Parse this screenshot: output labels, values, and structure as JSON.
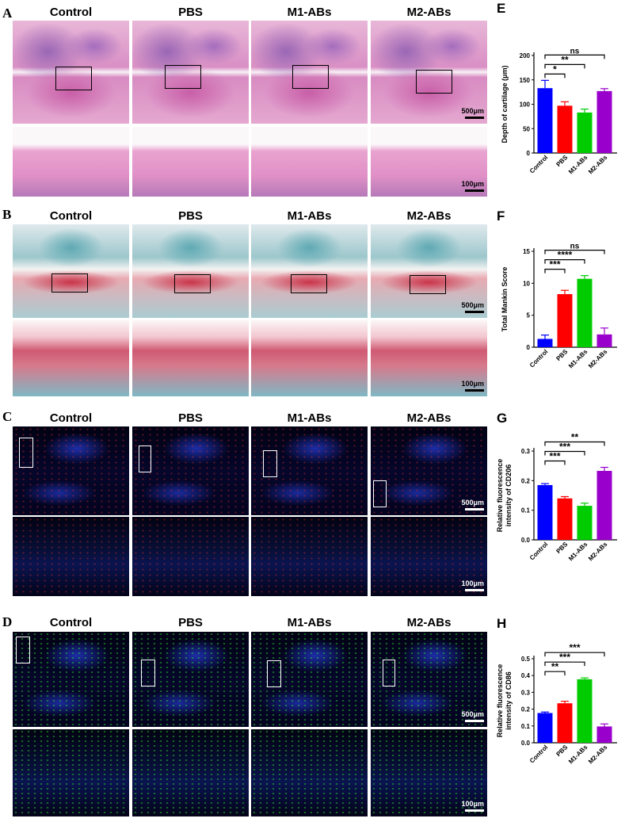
{
  "panels": {
    "A": {
      "letter": "A",
      "groups": [
        "Control",
        "PBS",
        "M1-ABs",
        "M2-ABs"
      ],
      "scale_top": "500μm",
      "scale_bottom": "100μm"
    },
    "B": {
      "letter": "B",
      "groups": [
        "Control",
        "PBS",
        "M1-ABs",
        "M2-ABs"
      ],
      "scale_top": "500μm",
      "scale_bottom": "100μm"
    },
    "C": {
      "letter": "C",
      "groups": [
        "Control",
        "PBS",
        "M1-ABs",
        "M2-ABs"
      ],
      "scale_top": "500μm",
      "scale_bottom": "100μm"
    },
    "D": {
      "letter": "D",
      "groups": [
        "Control",
        "PBS",
        "M1-ABs",
        "M2-ABs"
      ],
      "scale_top": "500μm",
      "scale_bottom": "100μm"
    }
  },
  "colors": {
    "control": "#0000ff",
    "pbs": "#ff0000",
    "m1": "#00cc00",
    "m2": "#9900cc"
  },
  "chart_data": [
    {
      "letter": "E",
      "type": "bar",
      "categories": [
        "Control",
        "PBS",
        "M1-ABs",
        "M2-ABs"
      ],
      "values": [
        133,
        97,
        83,
        127
      ],
      "errors": [
        16,
        8,
        7,
        5
      ],
      "ylabel": "Depth of cartilage (μm)",
      "ylim": [
        0,
        200
      ],
      "yticks": [
        "0",
        "50",
        "100",
        "150",
        "200"
      ],
      "significance": [
        {
          "from": 0,
          "to": 1,
          "label": "*"
        },
        {
          "from": 0,
          "to": 2,
          "label": "**"
        },
        {
          "from": 0,
          "to": 3,
          "label": "ns"
        }
      ]
    },
    {
      "letter": "F",
      "type": "bar",
      "categories": [
        "Control",
        "PBS",
        "M1-ABs",
        "M2-ABs"
      ],
      "values": [
        1.3,
        8.3,
        10.7,
        2.0
      ],
      "errors": [
        0.6,
        0.6,
        0.5,
        1.0
      ],
      "ylabel": "Total Mankin Score",
      "ylim": [
        0,
        15
      ],
      "yticks": [
        "0",
        "5",
        "10",
        "15"
      ],
      "significance": [
        {
          "from": 0,
          "to": 1,
          "label": "***"
        },
        {
          "from": 0,
          "to": 2,
          "label": "****"
        },
        {
          "from": 0,
          "to": 3,
          "label": "ns"
        }
      ]
    },
    {
      "letter": "G",
      "type": "bar",
      "categories": [
        "Control",
        "PBS",
        "M1-ABs",
        "M2-ABs"
      ],
      "values": [
        0.185,
        0.14,
        0.115,
        0.233
      ],
      "errors": [
        0.005,
        0.006,
        0.009,
        0.012
      ],
      "ylabel": "Relative fluorescence intensity of CD206",
      "ylabel_lines": [
        "Relative fluorescence",
        "intensity of CD206"
      ],
      "ylim": [
        0,
        0.3
      ],
      "yticks": [
        "0.0",
        "0.1",
        "0.2",
        "0.3"
      ],
      "significance": [
        {
          "from": 0,
          "to": 1,
          "label": "***"
        },
        {
          "from": 0,
          "to": 2,
          "label": "***"
        },
        {
          "from": 0,
          "to": 3,
          "label": "**"
        }
      ]
    },
    {
      "letter": "H",
      "type": "bar",
      "categories": [
        "Control",
        "PBS",
        "M1-ABs",
        "M2-ABs"
      ],
      "values": [
        0.177,
        0.235,
        0.378,
        0.097
      ],
      "errors": [
        0.006,
        0.012,
        0.008,
        0.015
      ],
      "ylabel": "Relative fluorescence intensity of CD86",
      "ylabel_lines": [
        "Relative fluorescence",
        "intensity of CD86"
      ],
      "ylim": [
        0,
        0.5
      ],
      "yticks": [
        "0.0",
        "0.1",
        "0.2",
        "0.3",
        "0.4",
        "0.5"
      ],
      "significance": [
        {
          "from": 0,
          "to": 1,
          "label": "**"
        },
        {
          "from": 0,
          "to": 2,
          "label": "***"
        },
        {
          "from": 0,
          "to": 3,
          "label": "***"
        }
      ]
    }
  ]
}
